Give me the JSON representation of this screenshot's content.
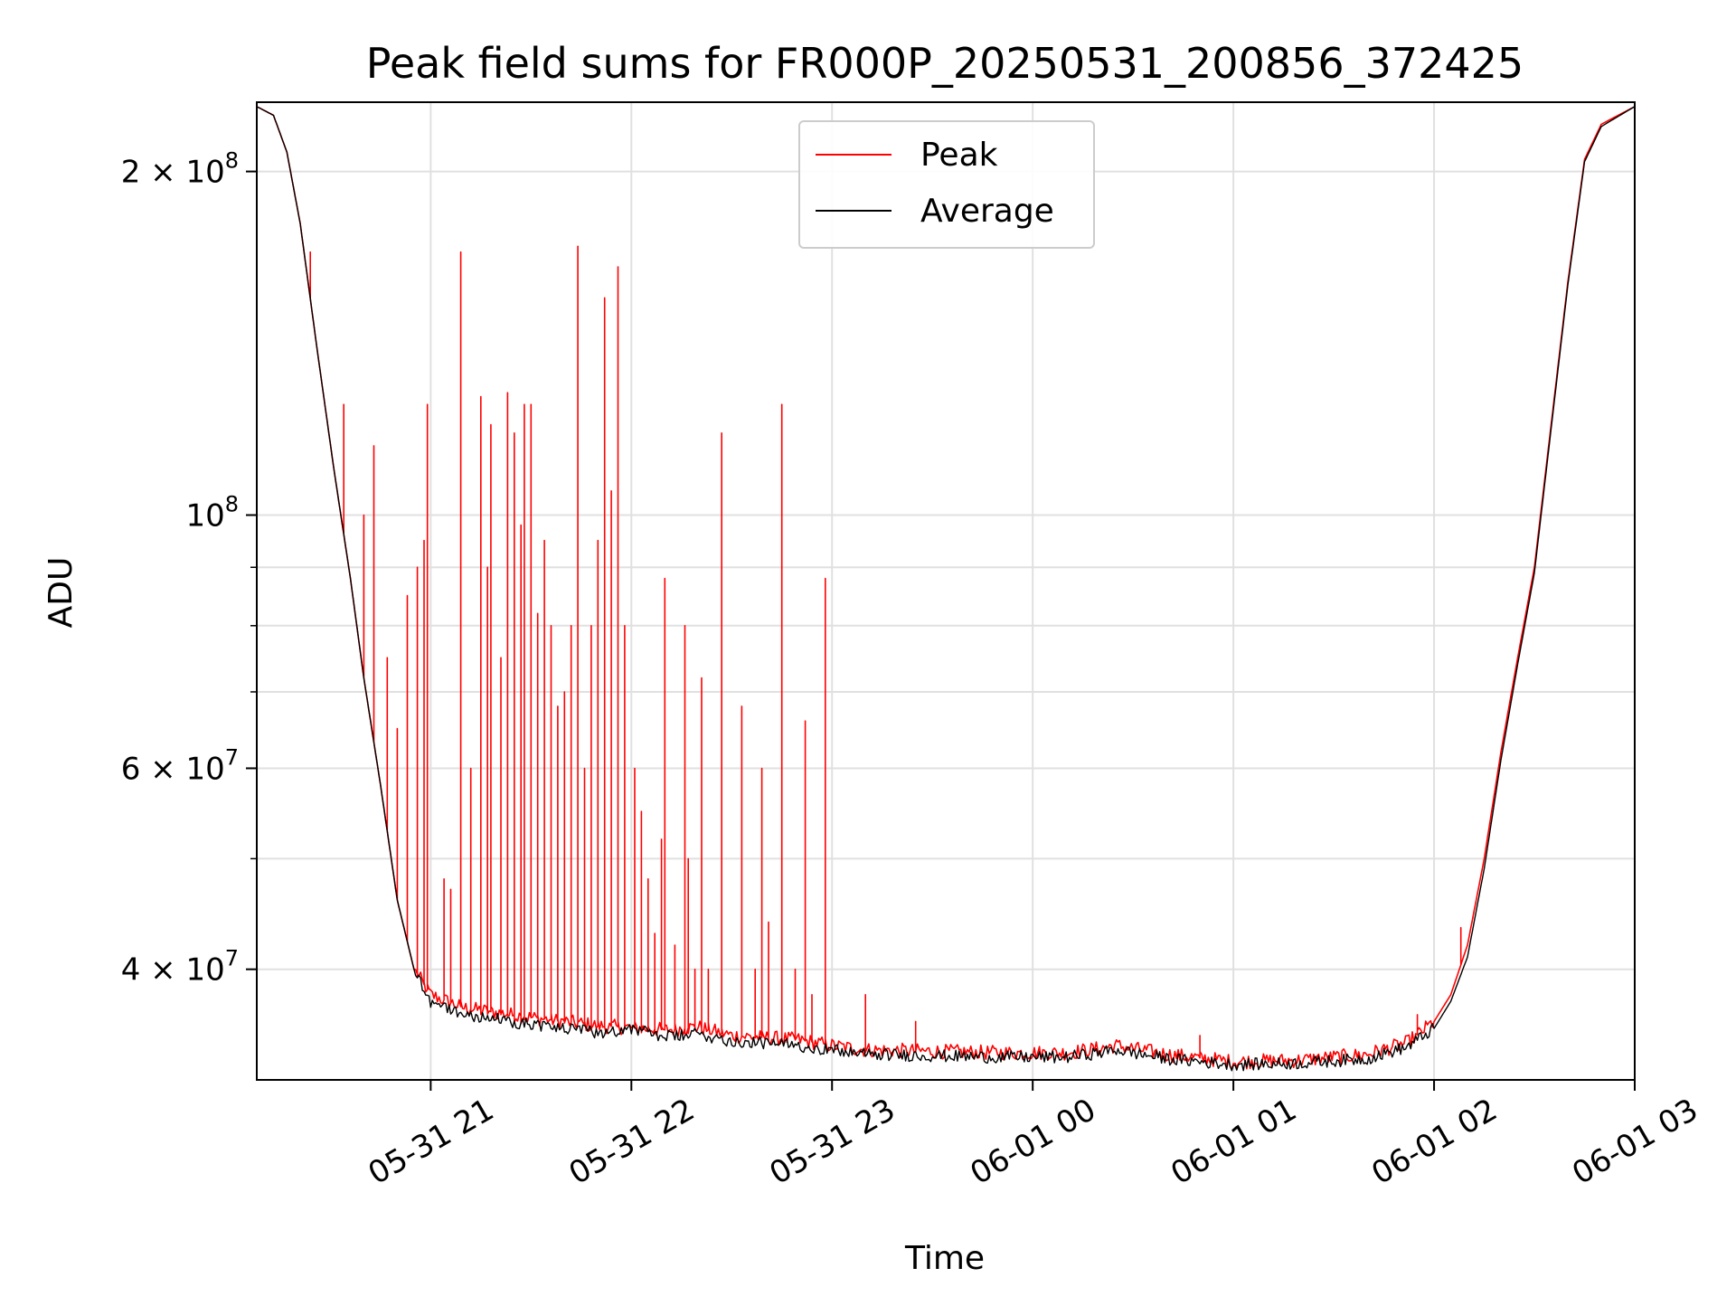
{
  "chart_data": {
    "type": "line",
    "title": "Peak field sums for FR000P_20250531_200856_372425",
    "xlabel": "Time",
    "ylabel": "ADU",
    "y_scale": "log",
    "x_range": [
      "2025-05-31 20:08",
      "2025-06-01 03:00"
    ],
    "ylim": [
      32000000,
      230000000
    ],
    "grid": true,
    "legend_position": "top-center",
    "x_ticks": [
      {
        "value": "2025-05-31 21:00",
        "label": "05-31 21"
      },
      {
        "value": "2025-05-31 22:00",
        "label": "05-31 22"
      },
      {
        "value": "2025-05-31 23:00",
        "label": "05-31 23"
      },
      {
        "value": "2025-06-01 00:00",
        "label": "06-01 00"
      },
      {
        "value": "2025-06-01 01:00",
        "label": "06-01 01"
      },
      {
        "value": "2025-06-01 02:00",
        "label": "06-01 02"
      },
      {
        "value": "2025-06-01 03:00",
        "label": "06-01 03"
      }
    ],
    "y_major_ticks": [
      {
        "value": 40000000,
        "mantissa": "4",
        "exponent": "7"
      },
      {
        "value": 60000000,
        "mantissa": "6",
        "exponent": "7"
      },
      {
        "value": 100000000,
        "mantissa": "",
        "exponent": "8"
      },
      {
        "value": 200000000,
        "mantissa": "2",
        "exponent": "8"
      }
    ],
    "y_minor_gridlines": [
      50000000,
      70000000,
      80000000,
      90000000
    ],
    "series": [
      {
        "name": "Peak",
        "color": "#ff0000",
        "baseline": [
          [
            "2025-05-31 20:08",
            228000000
          ],
          [
            "2025-05-31 20:13",
            224000000
          ],
          [
            "2025-05-31 20:17",
            208000000
          ],
          [
            "2025-05-31 20:21",
            180000000
          ],
          [
            "2025-05-31 20:26",
            140000000
          ],
          [
            "2025-05-31 20:31",
            110000000
          ],
          [
            "2025-05-31 20:36",
            88000000
          ],
          [
            "2025-05-31 20:40",
            72000000
          ],
          [
            "2025-05-31 20:45",
            58000000
          ],
          [
            "2025-05-31 20:50",
            46000000
          ],
          [
            "2025-05-31 20:55",
            40000000
          ],
          [
            "2025-05-31 21:00",
            38000000
          ],
          [
            "2025-05-31 21:10",
            37000000
          ],
          [
            "2025-05-31 21:30",
            36300000
          ],
          [
            "2025-05-31 21:50",
            35700000
          ],
          [
            "2025-05-31 22:10",
            35400000
          ],
          [
            "2025-05-31 22:20",
            35600000
          ],
          [
            "2025-05-31 22:30",
            35000000
          ],
          [
            "2025-05-31 22:50",
            34700000
          ],
          [
            "2025-05-31 23:00",
            34300000
          ],
          [
            "2025-05-31 23:10",
            34000000
          ],
          [
            "2025-05-31 23:30",
            33900000
          ],
          [
            "2025-05-31 23:50",
            33800000
          ],
          [
            "2025-06-01 00:10",
            33800000
          ],
          [
            "2025-06-01 00:20",
            34100000
          ],
          [
            "2025-06-01 00:25",
            34300000
          ],
          [
            "2025-06-01 00:40",
            33700000
          ],
          [
            "2025-06-01 01:00",
            33200000
          ],
          [
            "2025-06-01 01:20",
            33300000
          ],
          [
            "2025-06-01 01:40",
            33700000
          ],
          [
            "2025-06-01 01:52",
            34500000
          ],
          [
            "2025-06-01 02:00",
            36000000
          ],
          [
            "2025-06-01 02:05",
            38000000
          ],
          [
            "2025-06-01 02:10",
            42000000
          ],
          [
            "2025-06-01 02:15",
            50000000
          ],
          [
            "2025-06-01 02:20",
            62000000
          ],
          [
            "2025-06-01 02:25",
            75000000
          ],
          [
            "2025-06-01 02:30",
            90000000
          ],
          [
            "2025-06-01 02:35",
            120000000
          ],
          [
            "2025-06-01 02:40",
            160000000
          ],
          [
            "2025-06-01 02:45",
            205000000
          ],
          [
            "2025-06-01 02:50",
            220000000
          ],
          [
            "2025-06-01 03:00",
            228000000
          ]
        ],
        "spikes": [
          [
            "2025-05-31 20:24",
            170000000
          ],
          [
            "2025-05-31 20:34",
            125000000
          ],
          [
            "2025-05-31 20:40",
            100000000
          ],
          [
            "2025-05-31 20:43",
            115000000
          ],
          [
            "2025-05-31 20:47",
            75000000
          ],
          [
            "2025-05-31 20:50",
            65000000
          ],
          [
            "2025-05-31 20:53",
            85000000
          ],
          [
            "2025-05-31 20:56",
            90000000
          ],
          [
            "2025-05-31 20:58",
            95000000
          ],
          [
            "2025-05-31 20:59",
            125000000
          ],
          [
            "2025-05-31 21:04",
            48000000
          ],
          [
            "2025-05-31 21:06",
            47000000
          ],
          [
            "2025-05-31 21:09",
            170000000
          ],
          [
            "2025-05-31 21:12",
            60000000
          ],
          [
            "2025-05-31 21:15",
            127000000
          ],
          [
            "2025-05-31 21:17",
            90000000
          ],
          [
            "2025-05-31 21:18",
            120000000
          ],
          [
            "2025-05-31 21:21",
            75000000
          ],
          [
            "2025-05-31 21:23",
            128000000
          ],
          [
            "2025-05-31 21:25",
            118000000
          ],
          [
            "2025-05-31 21:27",
            98000000
          ],
          [
            "2025-05-31 21:28",
            125000000
          ],
          [
            "2025-05-31 21:30",
            125000000
          ],
          [
            "2025-05-31 21:32",
            82000000
          ],
          [
            "2025-05-31 21:34",
            95000000
          ],
          [
            "2025-05-31 21:36",
            80000000
          ],
          [
            "2025-05-31 21:38",
            68000000
          ],
          [
            "2025-05-31 21:40",
            70000000
          ],
          [
            "2025-05-31 21:42",
            80000000
          ],
          [
            "2025-05-31 21:44",
            172000000
          ],
          [
            "2025-05-31 21:46",
            60000000
          ],
          [
            "2025-05-31 21:48",
            80000000
          ],
          [
            "2025-05-31 21:50",
            95000000
          ],
          [
            "2025-05-31 21:52",
            155000000
          ],
          [
            "2025-05-31 21:54",
            105000000
          ],
          [
            "2025-05-31 21:56",
            165000000
          ],
          [
            "2025-05-31 21:58",
            80000000
          ],
          [
            "2025-05-31 22:01",
            60000000
          ],
          [
            "2025-05-31 22:03",
            55000000
          ],
          [
            "2025-05-31 22:05",
            48000000
          ],
          [
            "2025-05-31 22:07",
            43000000
          ],
          [
            "2025-05-31 22:09",
            52000000
          ],
          [
            "2025-05-31 22:10",
            88000000
          ],
          [
            "2025-05-31 22:13",
            42000000
          ],
          [
            "2025-05-31 22:16",
            80000000
          ],
          [
            "2025-05-31 22:17",
            50000000
          ],
          [
            "2025-05-31 22:19",
            40000000
          ],
          [
            "2025-05-31 22:21",
            72000000
          ],
          [
            "2025-05-31 22:23",
            40000000
          ],
          [
            "2025-05-31 22:27",
            118000000
          ],
          [
            "2025-05-31 22:33",
            68000000
          ],
          [
            "2025-05-31 22:37",
            40000000
          ],
          [
            "2025-05-31 22:39",
            60000000
          ],
          [
            "2025-05-31 22:41",
            44000000
          ],
          [
            "2025-05-31 22:45",
            125000000
          ],
          [
            "2025-05-31 22:49",
            40000000
          ],
          [
            "2025-05-31 22:52",
            66000000
          ],
          [
            "2025-05-31 22:54",
            38000000
          ],
          [
            "2025-05-31 22:58",
            88000000
          ],
          [
            "2025-05-31 23:10",
            38000000
          ],
          [
            "2025-05-31 23:25",
            36000000
          ],
          [
            "2025-06-01 00:50",
            35000000
          ],
          [
            "2025-06-01 01:55",
            36500000
          ],
          [
            "2025-06-01 02:08",
            43500000
          ]
        ]
      },
      {
        "name": "Average",
        "color": "#000000",
        "baseline": [
          [
            "2025-05-31 20:08",
            228000000
          ],
          [
            "2025-05-31 20:13",
            224000000
          ],
          [
            "2025-05-31 20:17",
            208000000
          ],
          [
            "2025-05-31 20:21",
            180000000
          ],
          [
            "2025-05-31 20:26",
            140000000
          ],
          [
            "2025-05-31 20:31",
            110000000
          ],
          [
            "2025-05-31 20:36",
            88000000
          ],
          [
            "2025-05-31 20:40",
            72000000
          ],
          [
            "2025-05-31 20:45",
            58000000
          ],
          [
            "2025-05-31 20:50",
            46000000
          ],
          [
            "2025-05-31 20:55",
            40000000
          ],
          [
            "2025-05-31 21:00",
            37500000
          ],
          [
            "2025-05-31 21:10",
            36500000
          ],
          [
            "2025-05-31 21:30",
            35800000
          ],
          [
            "2025-05-31 21:50",
            35200000
          ],
          [
            "2025-05-31 22:00",
            35500000
          ],
          [
            "2025-05-31 22:10",
            34900000
          ],
          [
            "2025-05-31 22:20",
            35100000
          ],
          [
            "2025-05-31 22:30",
            34600000
          ],
          [
            "2025-05-31 22:50",
            34300000
          ],
          [
            "2025-05-31 23:00",
            34000000
          ],
          [
            "2025-05-31 23:10",
            33700000
          ],
          [
            "2025-05-31 23:30",
            33600000
          ],
          [
            "2025-05-31 23:50",
            33500000
          ],
          [
            "2025-06-01 00:10",
            33500000
          ],
          [
            "2025-06-01 00:20",
            33800000
          ],
          [
            "2025-06-01 00:25",
            34000000
          ],
          [
            "2025-06-01 00:40",
            33400000
          ],
          [
            "2025-06-01 01:00",
            33000000
          ],
          [
            "2025-06-01 01:20",
            33100000
          ],
          [
            "2025-06-01 01:40",
            33400000
          ],
          [
            "2025-06-01 01:52",
            34200000
          ],
          [
            "2025-06-01 02:00",
            35500000
          ],
          [
            "2025-06-01 02:05",
            37500000
          ],
          [
            "2025-06-01 02:10",
            41000000
          ],
          [
            "2025-06-01 02:15",
            49000000
          ],
          [
            "2025-06-01 02:20",
            61000000
          ],
          [
            "2025-06-01 02:25",
            74000000
          ],
          [
            "2025-06-01 02:30",
            89000000
          ],
          [
            "2025-06-01 02:35",
            119000000
          ],
          [
            "2025-06-01 02:40",
            159000000
          ],
          [
            "2025-06-01 02:45",
            204000000
          ],
          [
            "2025-06-01 02:50",
            219000000
          ],
          [
            "2025-06-01 03:00",
            228000000
          ]
        ]
      }
    ]
  }
}
